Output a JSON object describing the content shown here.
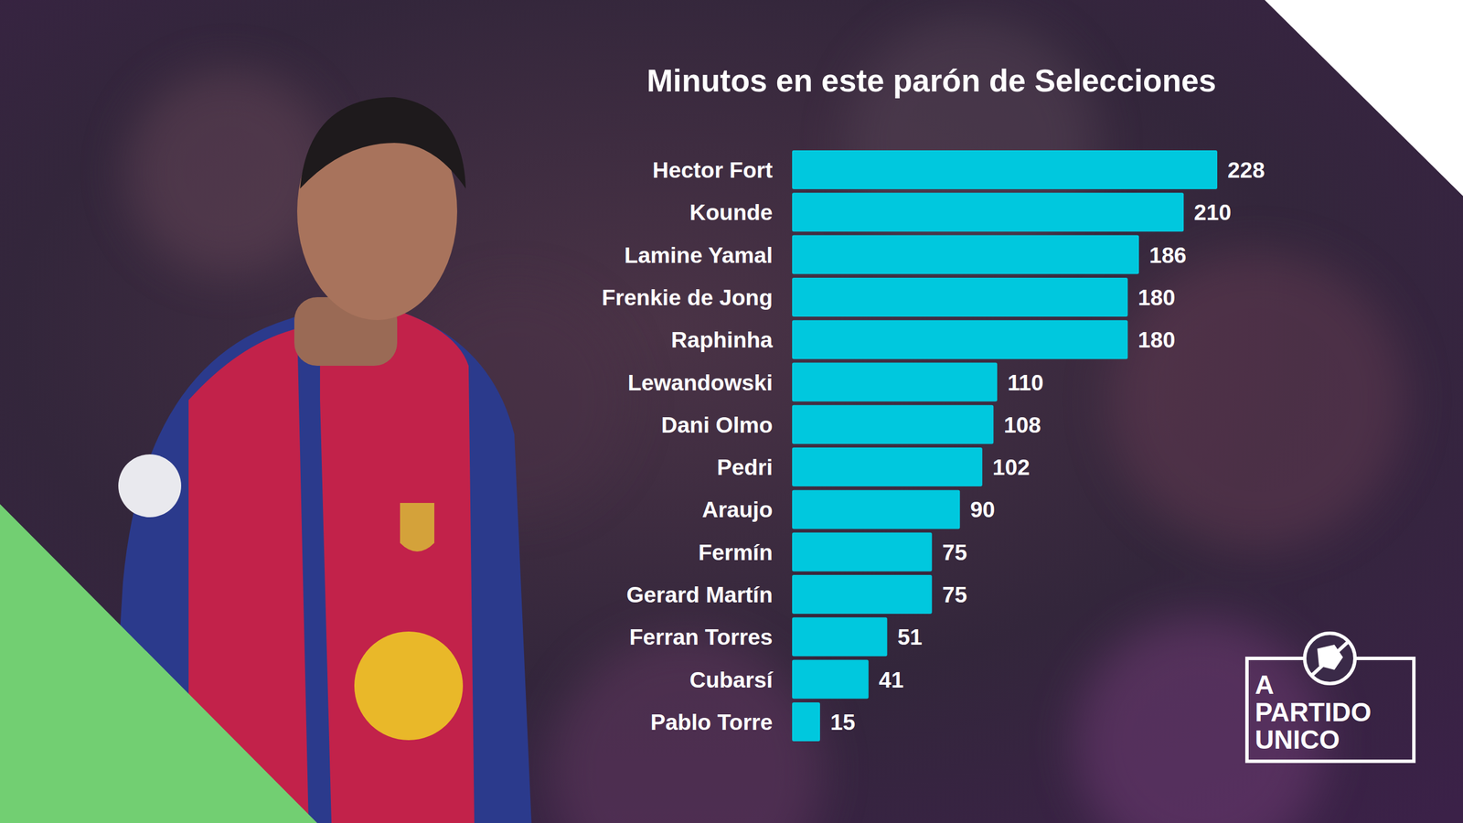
{
  "chart_data": {
    "type": "bar",
    "orientation": "horizontal",
    "title": "Minutos en este parón de Selecciones",
    "categories": [
      "Hector Fort",
      "Kounde",
      "Lamine Yamal",
      "Frenkie de Jong",
      "Raphinha",
      "Lewandowski",
      "Dani Olmo",
      "Pedri",
      "Araujo",
      "Fermín",
      "Gerard Martín",
      "Ferran Torres",
      "Cubarsí",
      "Pablo Torre"
    ],
    "values": [
      228,
      210,
      186,
      180,
      180,
      110,
      108,
      102,
      90,
      75,
      75,
      51,
      41,
      15
    ],
    "color": "#00c8de",
    "xlim": [
      0,
      228
    ],
    "grid": false,
    "data_labels": true,
    "tick_labels": "y",
    "annotations": [
      "A PARTIDO UNICO"
    ]
  }
}
